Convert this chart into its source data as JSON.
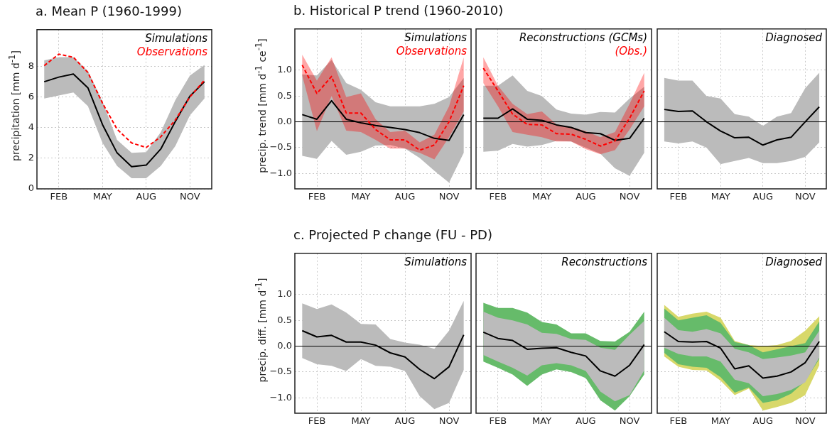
{
  "chart_data": [
    {
      "type": "line",
      "title": "a. Mean P (1960-1999)",
      "ylabel": "precipitation  [mm d$^{-1}$]",
      "categories": [
        null,
        "FEB",
        null,
        null,
        "MAY",
        null,
        null,
        "AUG",
        null,
        null,
        "NOV",
        null
      ],
      "ylim": [
        0,
        10.4
      ],
      "yticks": [
        0,
        2,
        4,
        6,
        8
      ],
      "grid": true,
      "legend": "top right",
      "series": [
        {
          "color": "#bbbbbb",
          "values": [
            null,
            null,
            null,
            null,
            null,
            null,
            null,
            null,
            null,
            null,
            null,
            null
          ],
          "lower": [
            5.9,
            6.1,
            6.3,
            5.4,
            3.0,
            1.5,
            0.7,
            0.7,
            1.5,
            2.8,
            4.8,
            5.9
          ],
          "upper": [
            8.4,
            8.6,
            8.6,
            7.7,
            5.7,
            3.2,
            2.35,
            2.4,
            3.7,
            5.8,
            7.4,
            8.1
          ]
        },
        {
          "name": "Simulations",
          "color": "#000000",
          "values": [
            7.0,
            7.3,
            7.5,
            6.6,
            4.2,
            2.35,
            1.45,
            1.55,
            2.6,
            4.4,
            6.05,
            7.0
          ]
        },
        {
          "name": "Observations",
          "color": "#ff0000",
          "line_style": "dashed",
          "values": [
            8.05,
            8.8,
            8.6,
            7.6,
            5.6,
            3.9,
            3.0,
            2.7,
            3.4,
            4.5,
            6.0,
            7.1
          ]
        }
      ]
    },
    {
      "type": "line",
      "title": "b. Historical P trend (1960-2010)",
      "ylabel": "precip. trend  [mm d$^{-1}$ ce$^{-1}$]",
      "categories": [
        null,
        "FEB",
        null,
        null,
        "MAY",
        null,
        null,
        "AUG",
        null,
        null,
        "NOV",
        null
      ],
      "ylim": [
        -1.3,
        1.8
      ],
      "yticks": [
        {
          "value": -1,
          "label": "−1.0"
        },
        {
          "value": -0.5,
          "label": "−0.5"
        },
        {
          "value": 0,
          "label": "0.0"
        },
        {
          "value": 0.5,
          "label": "0.5"
        },
        {
          "value": 1,
          "label": "1.0"
        }
      ],
      "grid": true,
      "legend": "top right",
      "ref_lines": [
        {
          "axis": "y",
          "value": 0,
          "color": "#000000"
        }
      ],
      "series": [
        {
          "color": "#bbbbbb",
          "values": [
            null,
            null,
            null,
            null,
            null,
            null,
            null,
            null,
            null,
            null,
            null,
            null
          ],
          "lower": [
            -0.66,
            -0.72,
            -0.37,
            -0.64,
            -0.58,
            -0.46,
            -0.45,
            -0.52,
            -0.7,
            -0.95,
            -1.18,
            -0.6
          ],
          "upper": [
            0.92,
            0.9,
            1.2,
            0.75,
            0.62,
            0.38,
            0.3,
            0.3,
            0.3,
            0.35,
            0.48,
            0.85
          ]
        },
        {
          "name": "Simulations",
          "color": "#000000",
          "values": [
            0.14,
            0.05,
            0.41,
            0.05,
            -0.02,
            -0.07,
            -0.11,
            -0.15,
            -0.21,
            -0.32,
            -0.36,
            0.14
          ]
        },
        {
          "name": "Observations",
          "color": "#ff0000",
          "line_style": "dashed",
          "values": [
            1.1,
            0.55,
            0.88,
            0.17,
            0.17,
            -0.15,
            -0.35,
            -0.35,
            -0.55,
            -0.45,
            0.0,
            0.7
          ],
          "lower": [
            0.9,
            -0.18,
            0.5,
            -0.17,
            -0.2,
            -0.35,
            -0.52,
            -0.52,
            -0.6,
            -0.73,
            -0.3,
            0.2
          ],
          "upper": [
            1.3,
            0.8,
            1.25,
            0.48,
            0.55,
            0.05,
            -0.2,
            -0.17,
            -0.4,
            -0.25,
            0.3,
            1.25
          ]
        }
      ]
    },
    {
      "type": "line",
      "categories": [
        null,
        "FEB",
        null,
        null,
        "MAY",
        null,
        null,
        "AUG",
        null,
        null,
        "NOV",
        null
      ],
      "ylim": [
        -1.3,
        1.8
      ],
      "yticks": [
        -1,
        -0.5,
        0,
        0.5,
        1
      ],
      "tick_labels": "x",
      "grid": true,
      "legend": "top right",
      "ref_lines": [
        {
          "axis": "y",
          "value": 0,
          "color": "#000000"
        }
      ],
      "series": [
        {
          "color": "#bbbbbb",
          "values": [
            null,
            null,
            null,
            null,
            null,
            null,
            null,
            null,
            null,
            null,
            null,
            null
          ],
          "lower": [
            -0.58,
            -0.56,
            -0.43,
            -0.48,
            -0.45,
            -0.37,
            -0.38,
            -0.5,
            -0.62,
            -0.9,
            -1.05,
            -0.6
          ],
          "upper": [
            0.7,
            0.7,
            0.9,
            0.6,
            0.5,
            0.24,
            0.16,
            0.14,
            0.19,
            0.18,
            0.45,
            0.68
          ]
        },
        {
          "name": "Reconstructions (GCMs)",
          "color": "#000000",
          "values": [
            0.07,
            0.07,
            0.25,
            0.05,
            0.03,
            -0.06,
            -0.11,
            -0.21,
            -0.23,
            -0.36,
            -0.32,
            0.07
          ]
        },
        {
          "name": "(Obs.)",
          "color": "#ff0000",
          "line_style": "dashed",
          "values": [
            1.04,
            0.6,
            0.15,
            -0.05,
            -0.06,
            -0.23,
            -0.24,
            -0.34,
            -0.47,
            -0.37,
            0.07,
            0.6
          ],
          "lower": [
            0.75,
            0.3,
            -0.2,
            -0.25,
            -0.3,
            -0.38,
            -0.38,
            -0.53,
            -0.63,
            -0.55,
            -0.15,
            0.3
          ],
          "upper": [
            1.25,
            0.7,
            0.35,
            0.15,
            0.2,
            -0.05,
            -0.1,
            -0.18,
            -0.3,
            -0.2,
            0.35,
            0.95
          ]
        }
      ]
    },
    {
      "type": "line",
      "categories": [
        null,
        "FEB",
        null,
        null,
        "MAY",
        null,
        null,
        "AUG",
        null,
        null,
        "NOV",
        null
      ],
      "ylim": [
        -1.3,
        1.8
      ],
      "yticks": [
        -1,
        -0.5,
        0,
        0.5,
        1
      ],
      "tick_labels": "x",
      "grid": true,
      "legend": "top right",
      "ref_lines": [
        {
          "axis": "y",
          "value": 0,
          "color": "#000000"
        }
      ],
      "series": [
        {
          "color": "#bbbbbb",
          "values": [
            null,
            null,
            null,
            null,
            null,
            null,
            null,
            null,
            null,
            null,
            null,
            null
          ],
          "lower": [
            -0.38,
            -0.42,
            -0.38,
            -0.5,
            -0.82,
            -0.76,
            -0.7,
            -0.8,
            -0.8,
            -0.76,
            -0.68,
            -0.4
          ],
          "upper": [
            0.85,
            0.8,
            0.8,
            0.5,
            0.45,
            0.15,
            0.1,
            -0.08,
            0.1,
            0.17,
            0.65,
            0.95
          ]
        },
        {
          "name": "Diagnosed",
          "color": "#000000",
          "values": [
            0.24,
            0.2,
            0.21,
            0.0,
            -0.18,
            -0.31,
            -0.3,
            -0.45,
            -0.35,
            -0.3,
            0.0,
            0.29
          ]
        }
      ]
    },
    {
      "type": "line",
      "title": "c. Projected P change (FU - PD)",
      "ylabel": "precip. diff.  [mm d$^{-1}$]",
      "categories": [
        null,
        "FEB",
        null,
        null,
        "MAY",
        null,
        null,
        "AUG",
        null,
        null,
        "NOV",
        null
      ],
      "ylim": [
        -1.3,
        1.8
      ],
      "yticks": [
        {
          "value": -1,
          "label": "−1.0"
        },
        {
          "value": -0.5,
          "label": "−0.5"
        },
        {
          "value": 0,
          "label": "0.0"
        },
        {
          "value": 0.5,
          "label": "0.5"
        },
        {
          "value": 1,
          "label": "1.0"
        }
      ],
      "grid": true,
      "legend": "top right",
      "ref_lines": [
        {
          "axis": "y",
          "value": 0,
          "color": "#000000"
        }
      ],
      "series": [
        {
          "color": "#bbbbbb",
          "values": [
            null,
            null,
            null,
            null,
            null,
            null,
            null,
            null,
            null,
            null,
            null,
            null
          ],
          "lower": [
            -0.23,
            -0.35,
            -0.38,
            -0.48,
            -0.25,
            -0.38,
            -0.4,
            -0.48,
            -0.97,
            -1.22,
            -1.1,
            -0.46
          ],
          "upper": [
            0.83,
            0.72,
            0.81,
            0.65,
            0.43,
            0.42,
            0.14,
            0.07,
            0.03,
            -0.05,
            0.3,
            0.88
          ]
        },
        {
          "name": "Simulations",
          "color": "#000000",
          "values": [
            0.3,
            0.18,
            0.21,
            0.08,
            0.08,
            0.02,
            -0.13,
            -0.21,
            -0.45,
            -0.63,
            -0.4,
            0.22
          ]
        }
      ]
    },
    {
      "type": "line",
      "categories": [
        null,
        "FEB",
        null,
        null,
        "MAY",
        null,
        null,
        "AUG",
        null,
        null,
        "NOV",
        null
      ],
      "ylim": [
        -1.3,
        1.8
      ],
      "yticks": [
        -1,
        -0.5,
        0,
        0.5,
        1
      ],
      "tick_labels": "x",
      "grid": true,
      "legend": "top right",
      "ref_lines": [
        {
          "axis": "y",
          "value": 0,
          "color": "#000000"
        }
      ],
      "series": [
        {
          "color": "#66bb6a",
          "values": [
            null,
            null,
            null,
            null,
            null,
            null,
            null,
            null,
            null,
            null,
            null,
            null
          ],
          "lower": [
            -0.3,
            -0.42,
            -0.55,
            -0.77,
            -0.55,
            -0.45,
            -0.5,
            -0.62,
            -1.05,
            -1.25,
            -0.97,
            -0.55
          ],
          "upper": [
            0.84,
            0.74,
            0.74,
            0.65,
            0.47,
            0.42,
            0.25,
            0.25,
            0.1,
            0.09,
            0.28,
            0.67
          ]
        },
        {
          "color": "#bbbbbb",
          "values": [
            null,
            null,
            null,
            null,
            null,
            null,
            null,
            null,
            null,
            null,
            null,
            null
          ],
          "lower": [
            -0.17,
            -0.3,
            -0.42,
            -0.57,
            -0.37,
            -0.33,
            -0.37,
            -0.48,
            -0.88,
            -1.07,
            -0.95,
            -0.47
          ],
          "upper": [
            0.67,
            0.55,
            0.5,
            0.42,
            0.26,
            0.24,
            0.14,
            0.12,
            -0.03,
            -0.07,
            0.22,
            0.49
          ]
        },
        {
          "name": "Reconstructions",
          "color": "#000000",
          "values": [
            0.27,
            0.15,
            0.11,
            -0.06,
            -0.04,
            -0.03,
            -0.12,
            -0.19,
            -0.48,
            -0.58,
            -0.37,
            0.03
          ]
        }
      ]
    },
    {
      "type": "line",
      "categories": [
        null,
        "FEB",
        null,
        null,
        "MAY",
        null,
        null,
        "AUG",
        null,
        null,
        "NOV",
        null
      ],
      "ylim": [
        -1.3,
        1.8
      ],
      "yticks": [
        -1,
        -0.5,
        0,
        0.5,
        1
      ],
      "tick_labels": "x",
      "grid": true,
      "legend": "top right",
      "ref_lines": [
        {
          "axis": "y",
          "value": 0,
          "color": "#000000"
        }
      ],
      "series": [
        {
          "color": "#d8d86a",
          "values": [
            null,
            null,
            null,
            null,
            null,
            null,
            null,
            null,
            null,
            null,
            null,
            null
          ],
          "lower": [
            -0.2,
            -0.4,
            -0.46,
            -0.47,
            -0.67,
            -0.95,
            -0.82,
            -1.25,
            -1.18,
            -1.1,
            -0.95,
            -0.37
          ],
          "upper": [
            0.8,
            0.57,
            0.63,
            0.67,
            0.55,
            0.1,
            0.02,
            0.0,
            0.02,
            0.1,
            0.3,
            0.58
          ]
        },
        {
          "color": "#66bb6a",
          "values": [
            null,
            null,
            null,
            null,
            null,
            null,
            null,
            null,
            null,
            null,
            null,
            null
          ],
          "lower": [
            -0.13,
            -0.35,
            -0.4,
            -0.42,
            -0.6,
            -0.9,
            -0.8,
            -1.1,
            -1.05,
            -0.92,
            -0.68,
            -0.25
          ],
          "upper": [
            0.73,
            0.5,
            0.55,
            0.6,
            0.45,
            0.08,
            0.02,
            -0.12,
            -0.06,
            0.0,
            0.06,
            0.48
          ]
        },
        {
          "color": "#bbbbbb",
          "values": [
            null,
            null,
            null,
            null,
            null,
            null,
            null,
            null,
            null,
            null,
            null,
            null
          ],
          "lower": [
            -0.03,
            -0.15,
            -0.2,
            -0.2,
            -0.3,
            -0.65,
            -0.72,
            -0.97,
            -0.93,
            -0.85,
            -0.7,
            -0.22
          ],
          "upper": [
            0.55,
            0.31,
            0.28,
            0.33,
            0.25,
            -0.05,
            -0.12,
            -0.25,
            -0.22,
            -0.18,
            -0.12,
            0.3
          ]
        },
        {
          "name": "Diagnosed",
          "color": "#000000",
          "values": [
            0.28,
            0.09,
            0.08,
            0.09,
            -0.04,
            -0.44,
            -0.38,
            -0.62,
            -0.58,
            -0.5,
            -0.32,
            0.09
          ]
        }
      ]
    }
  ]
}
